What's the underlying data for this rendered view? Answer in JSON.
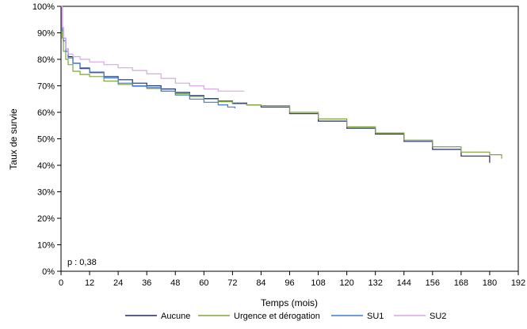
{
  "chart_data": {
    "type": "line",
    "title": "",
    "xlabel": "Temps (mois)",
    "ylabel": "Taux de survie",
    "xlim": [
      0,
      192
    ],
    "ylim": [
      0,
      100
    ],
    "x_ticks": [
      "0",
      "12",
      "24",
      "36",
      "48",
      "60",
      "72",
      "84",
      "96",
      "108",
      "120",
      "132",
      "144",
      "156",
      "168",
      "180",
      "192"
    ],
    "y_ticks": [
      "0%",
      "10%",
      "20%",
      "30%",
      "40%",
      "50%",
      "60%",
      "70%",
      "80%",
      "90%",
      "100%"
    ],
    "annotation": "p : 0,38",
    "legend_position": "bottom",
    "series": [
      {
        "name": "Aucune",
        "color": "#1f2a6b",
        "points": [
          [
            0,
            100
          ],
          [
            0.5,
            92
          ],
          [
            1,
            88
          ],
          [
            2,
            84
          ],
          [
            3,
            81
          ],
          [
            5,
            78.5
          ],
          [
            8,
            76.5
          ],
          [
            12,
            75
          ],
          [
            18,
            73.5
          ],
          [
            24,
            72.3
          ],
          [
            30,
            71
          ],
          [
            36,
            70
          ],
          [
            42,
            68.8
          ],
          [
            48,
            67.5
          ],
          [
            54,
            66.3
          ],
          [
            60,
            65.2
          ],
          [
            66,
            64.2
          ],
          [
            72,
            63.5
          ],
          [
            78,
            62.8
          ],
          [
            84,
            62
          ],
          [
            96,
            59.5
          ],
          [
            108,
            56.7
          ],
          [
            120,
            54
          ],
          [
            132,
            51.8
          ],
          [
            144,
            49
          ],
          [
            156,
            46
          ],
          [
            168,
            43.5
          ],
          [
            180,
            41
          ]
        ]
      },
      {
        "name": "Urgence et dérogation",
        "color": "#7ea63a",
        "points": [
          [
            0,
            100
          ],
          [
            0.5,
            88
          ],
          [
            1,
            83
          ],
          [
            2,
            80
          ],
          [
            3,
            78
          ],
          [
            5,
            75.5
          ],
          [
            8,
            74.3
          ],
          [
            12,
            73.5
          ],
          [
            18,
            71.8
          ],
          [
            24,
            70.5
          ],
          [
            30,
            69.8
          ],
          [
            36,
            69
          ],
          [
            42,
            68
          ],
          [
            48,
            67
          ],
          [
            54,
            66
          ],
          [
            60,
            65
          ],
          [
            66,
            64
          ],
          [
            72,
            63.2
          ],
          [
            78,
            62.8
          ],
          [
            84,
            62.5
          ],
          [
            96,
            60
          ],
          [
            108,
            57.5
          ],
          [
            120,
            54.5
          ],
          [
            132,
            52.2
          ],
          [
            144,
            49.5
          ],
          [
            156,
            47
          ],
          [
            168,
            45
          ],
          [
            180,
            44
          ],
          [
            185,
            42.5
          ]
        ]
      },
      {
        "name": "SU1",
        "color": "#3b7bd4",
        "points": [
          [
            0,
            100
          ],
          [
            0.5,
            91
          ],
          [
            1,
            87
          ],
          [
            2,
            83
          ],
          [
            3,
            80.5
          ],
          [
            5,
            78.5
          ],
          [
            8,
            76.8
          ],
          [
            12,
            75.2
          ],
          [
            18,
            73
          ],
          [
            24,
            71
          ],
          [
            30,
            70
          ],
          [
            36,
            69.3
          ],
          [
            42,
            68
          ],
          [
            48,
            66.5
          ],
          [
            54,
            65
          ],
          [
            60,
            63.8
          ],
          [
            66,
            62.8
          ],
          [
            70,
            62
          ],
          [
            73,
            61.5
          ]
        ]
      },
      {
        "name": "SU2",
        "color": "#d9a6e6",
        "points": [
          [
            0,
            100
          ],
          [
            0.5,
            92
          ],
          [
            1,
            88
          ],
          [
            2,
            84
          ],
          [
            3,
            82
          ],
          [
            5,
            81
          ],
          [
            8,
            80
          ],
          [
            12,
            79
          ],
          [
            18,
            78
          ],
          [
            24,
            76.8
          ],
          [
            30,
            75.8
          ],
          [
            36,
            74.5
          ],
          [
            42,
            72.8
          ],
          [
            48,
            71
          ],
          [
            54,
            70
          ],
          [
            60,
            68.8
          ],
          [
            66,
            68
          ],
          [
            72,
            68
          ],
          [
            77,
            68
          ]
        ]
      }
    ]
  }
}
